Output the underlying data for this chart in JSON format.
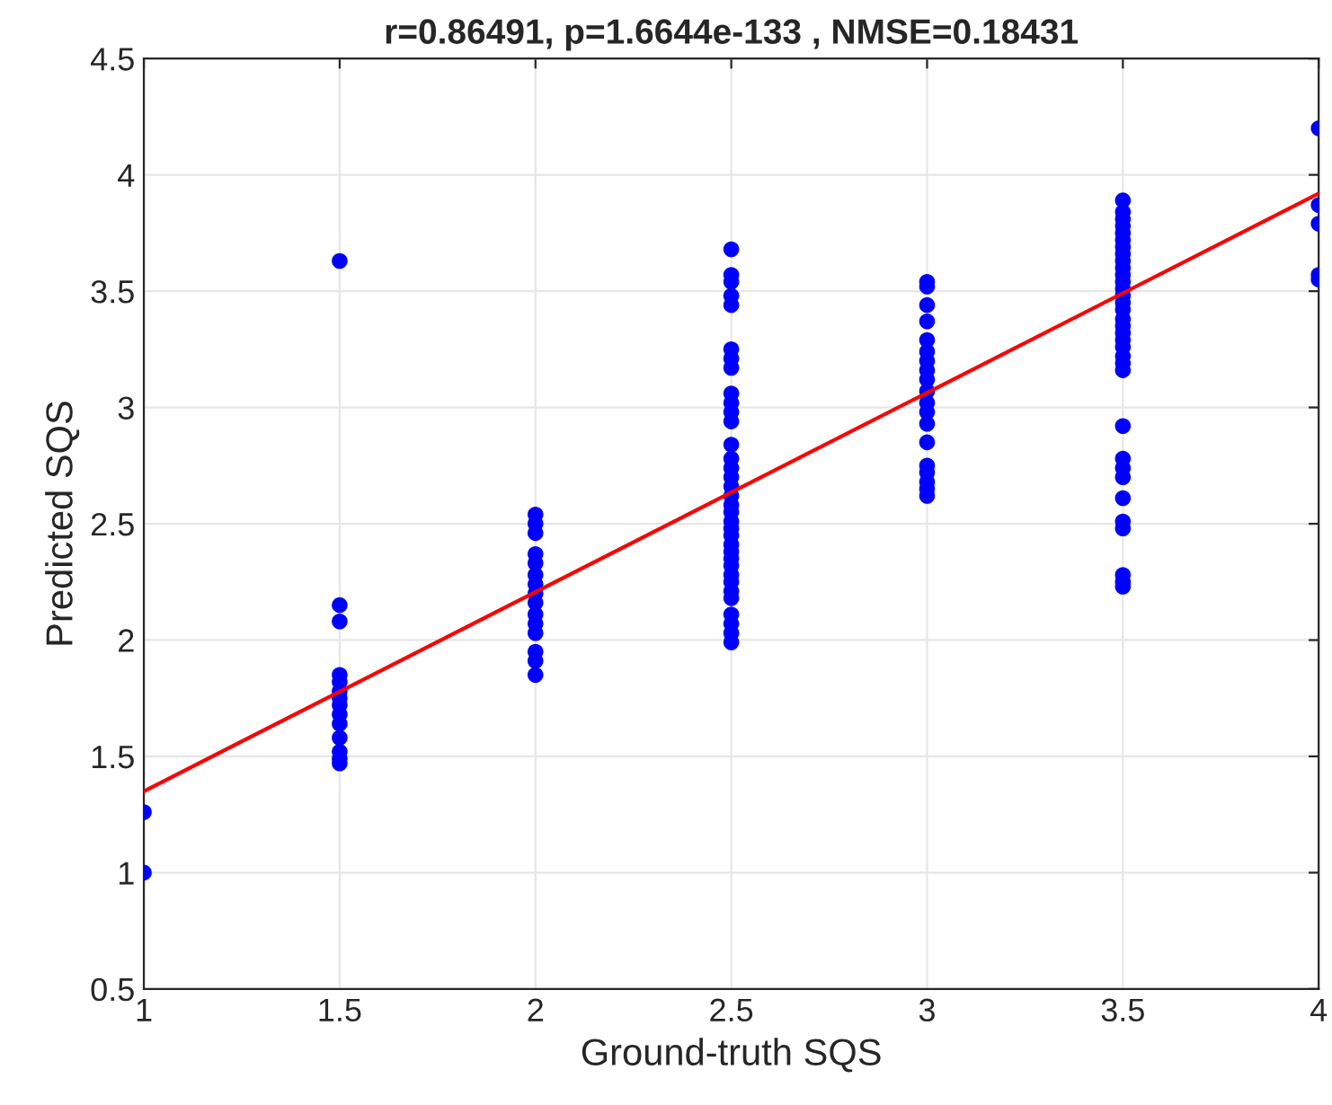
{
  "chart_data": {
    "type": "scatter",
    "title": "r=0.86491, p=1.6644e-133 , NMSE=0.18431",
    "xlabel": "Ground-truth SQS",
    "ylabel": "Predicted SQS",
    "xlim": [
      1,
      4
    ],
    "ylim": [
      0.5,
      4.5
    ],
    "xticks": [
      1,
      1.5,
      2,
      2.5,
      3,
      3.5,
      4
    ],
    "yticks": [
      0.5,
      1,
      1.5,
      2,
      2.5,
      3,
      3.5,
      4,
      4.5
    ],
    "grid": true,
    "series": [
      {
        "marker": "circle",
        "color": "#0000ff",
        "x": [
          1,
          1,
          1.5,
          1.5,
          1.5,
          1.5,
          1.5,
          1.5,
          1.5,
          1.5,
          1.5,
          1.5,
          1.5,
          1.5,
          1.5,
          1.5,
          2,
          2,
          2,
          2,
          2,
          2,
          2,
          2,
          2,
          2,
          2,
          2,
          2,
          2,
          2,
          2.5,
          2.5,
          2.5,
          2.5,
          2.5,
          2.5,
          2.5,
          2.5,
          2.5,
          2.5,
          2.5,
          2.5,
          2.5,
          2.5,
          2.5,
          2.5,
          2.5,
          2.5,
          2.5,
          2.5,
          2.5,
          2.5,
          2.5,
          2.5,
          2.5,
          2.5,
          2.5,
          2.5,
          2.5,
          2.5,
          2.5,
          2.5,
          2.5,
          2.5,
          2.5,
          3,
          3,
          3,
          3,
          3,
          3,
          3,
          3,
          3,
          3,
          3,
          3,
          3,
          3,
          3,
          3,
          3,
          3,
          3,
          3.5,
          3.5,
          3.5,
          3.5,
          3.5,
          3.5,
          3.5,
          3.5,
          3.5,
          3.5,
          3.5,
          3.5,
          3.5,
          3.5,
          3.5,
          3.5,
          3.5,
          3.5,
          3.5,
          3.5,
          3.5,
          3.5,
          3.5,
          3.5,
          3.5,
          3.5,
          3.5,
          3.5,
          3.5,
          3.5,
          3.5,
          3.5,
          3.5,
          3.5,
          4,
          4,
          4,
          4,
          4
        ],
        "values": [
          1.0,
          1.26,
          3.63,
          2.15,
          2.08,
          1.85,
          1.82,
          1.78,
          1.75,
          1.72,
          1.68,
          1.64,
          1.58,
          1.52,
          1.49,
          1.47,
          2.54,
          2.5,
          2.46,
          2.37,
          2.33,
          2.28,
          2.24,
          2.2,
          2.16,
          2.11,
          2.07,
          2.03,
          1.95,
          1.91,
          1.85,
          3.68,
          3.57,
          3.54,
          3.48,
          3.44,
          3.25,
          3.21,
          3.17,
          3.06,
          3.02,
          2.98,
          2.94,
          2.84,
          2.78,
          2.74,
          2.7,
          2.66,
          2.62,
          2.58,
          2.55,
          2.51,
          2.48,
          2.45,
          2.41,
          2.38,
          2.35,
          2.32,
          2.28,
          2.25,
          2.21,
          2.18,
          2.11,
          2.07,
          2.03,
          1.99,
          3.54,
          3.52,
          3.44,
          3.37,
          3.29,
          3.24,
          3.2,
          3.16,
          3.12,
          3.07,
          3.02,
          2.98,
          2.93,
          2.85,
          2.75,
          2.72,
          2.68,
          2.65,
          2.62,
          3.89,
          3.84,
          3.81,
          3.78,
          3.75,
          3.72,
          3.69,
          3.66,
          3.63,
          3.6,
          3.57,
          3.54,
          3.51,
          3.48,
          3.45,
          3.42,
          3.38,
          3.35,
          3.32,
          3.29,
          3.26,
          3.22,
          3.19,
          3.16,
          2.92,
          2.78,
          2.74,
          2.7,
          2.61,
          2.51,
          2.48,
          2.28,
          2.25,
          2.23,
          4.2,
          3.87,
          3.79,
          3.57,
          3.55
        ]
      },
      {
        "type": "line",
        "color": "#ff0000",
        "x": [
          1,
          4
        ],
        "values": [
          1.35,
          3.92
        ]
      }
    ]
  }
}
